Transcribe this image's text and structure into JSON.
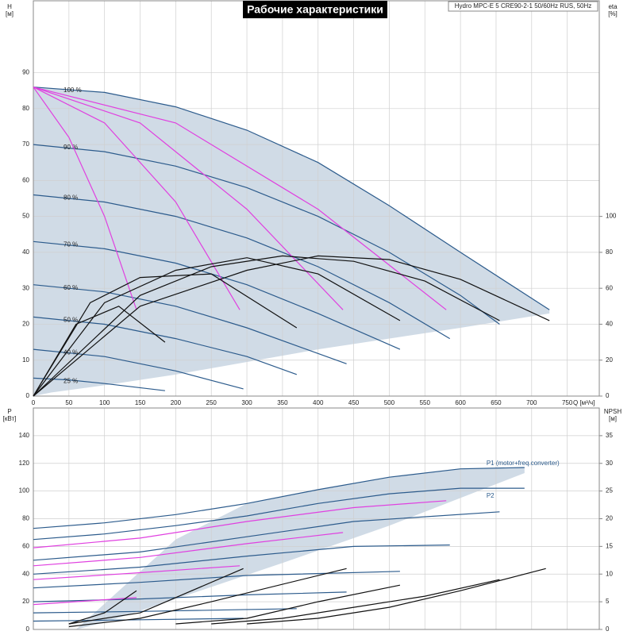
{
  "title": "Рабочие характеристики",
  "header": "Hydro MPC-E 5 CRE90-2-1 50/60Hz RUS, 50Hz",
  "chart_data": [
    {
      "type": "line",
      "ylabel": "H",
      "yunit": "[м]",
      "y2label": "eta",
      "y2unit": "[%]",
      "xlabel": "Q [м³/ч]",
      "xlim": [
        0,
        795
      ],
      "ylim": [
        0,
        110
      ],
      "y2lim": [
        0,
        220
      ],
      "xticks": [
        0,
        50,
        100,
        150,
        200,
        250,
        300,
        350,
        400,
        450,
        500,
        550,
        600,
        650,
        700,
        750
      ],
      "yticks": [
        0,
        10,
        20,
        30,
        40,
        50,
        60,
        70,
        80,
        90
      ],
      "y2ticks": [
        0,
        20,
        40,
        60,
        80,
        100
      ],
      "grid": true,
      "shaded_region": {
        "color": "#c8d5e2",
        "x": [
          0,
          100,
          200,
          300,
          400,
          500,
          600,
          725,
          725,
          600,
          400,
          200,
          100,
          25,
          0
        ],
        "y": [
          86,
          84.5,
          80.5,
          74,
          65,
          53,
          40,
          24,
          23,
          19,
          13,
          6,
          3,
          1,
          0
        ]
      },
      "series": [
        {
          "name": "100 %",
          "color": "#2c5b8c",
          "x": [
            0,
            100,
            200,
            300,
            400,
            500,
            600,
            725
          ],
          "values": [
            86,
            84.5,
            80.5,
            74,
            65,
            53,
            40,
            24
          ]
        },
        {
          "name": "90 %",
          "color": "#2c5b8c",
          "x": [
            0,
            100,
            200,
            300,
            400,
            500,
            600,
            655
          ],
          "values": [
            70,
            68,
            64,
            58,
            50,
            40,
            28,
            20
          ]
        },
        {
          "name": "80 %",
          "color": "#2c5b8c",
          "x": [
            0,
            100,
            200,
            300,
            400,
            500,
            585
          ],
          "values": [
            56,
            54,
            50,
            44,
            36,
            26,
            16
          ]
        },
        {
          "name": "70 %",
          "color": "#2c5b8c",
          "x": [
            0,
            100,
            200,
            300,
            400,
            515
          ],
          "values": [
            43,
            41,
            37,
            31,
            23,
            13
          ]
        },
        {
          "name": "60 %",
          "color": "#2c5b8c",
          "x": [
            0,
            100,
            200,
            300,
            440
          ],
          "values": [
            31,
            29,
            25,
            19,
            9
          ]
        },
        {
          "name": "50 %",
          "color": "#2c5b8c",
          "x": [
            0,
            100,
            200,
            300,
            370
          ],
          "values": [
            22,
            20,
            16,
            11,
            6
          ]
        },
        {
          "name": "40 %",
          "color": "#2c5b8c",
          "x": [
            0,
            100,
            200,
            295
          ],
          "values": [
            13,
            11,
            7,
            2
          ]
        },
        {
          "name": "25 %",
          "color": "#2c5b8c",
          "x": [
            0,
            50,
            100,
            185
          ],
          "values": [
            5,
            4.5,
            3.5,
            1.5
          ]
        },
        {
          "color": "#e040e0",
          "x": [
            0,
            50,
            100,
            145
          ],
          "values": [
            86,
            72,
            50,
            24
          ]
        },
        {
          "color": "#e040e0",
          "x": [
            0,
            100,
            200,
            290
          ],
          "values": [
            86,
            76,
            54,
            24
          ]
        },
        {
          "color": "#e040e0",
          "x": [
            0,
            150,
            300,
            435
          ],
          "values": [
            86,
            76,
            52,
            24
          ]
        },
        {
          "color": "#e040e0",
          "x": [
            0,
            200,
            400,
            580
          ],
          "values": [
            86,
            76,
            52,
            24
          ]
        },
        {
          "color": "#111111",
          "axis": "y2",
          "x": [
            0,
            150,
            300,
            400,
            500,
            600,
            725
          ],
          "values": [
            0,
            50,
            70,
            78,
            76,
            65,
            42
          ]
        },
        {
          "color": "#111111",
          "axis": "y2",
          "x": [
            0,
            150,
            250,
            350,
            450,
            550,
            655
          ],
          "values": [
            0,
            56,
            72,
            78,
            75,
            64,
            42
          ]
        },
        {
          "color": "#111111",
          "axis": "y2",
          "x": [
            0,
            100,
            200,
            300,
            400,
            515
          ],
          "values": [
            0,
            52,
            70,
            77,
            68,
            42
          ]
        },
        {
          "color": "#111111",
          "axis": "y2",
          "x": [
            0,
            80,
            150,
            250,
            370
          ],
          "values": [
            0,
            52,
            66,
            68,
            38
          ]
        },
        {
          "color": "#111111",
          "axis": "y2",
          "x": [
            0,
            60,
            120,
            185
          ],
          "values": [
            0,
            40,
            50,
            30
          ]
        }
      ]
    },
    {
      "type": "line",
      "ylabel": "P",
      "yunit": "[кВт]",
      "y2label": "NPSH",
      "y2unit": "[м]",
      "xlim": [
        0,
        795
      ],
      "ylim": [
        0,
        160
      ],
      "y2lim": [
        0,
        40
      ],
      "yticks": [
        0,
        20,
        40,
        60,
        80,
        100,
        120,
        140
      ],
      "y2ticks": [
        0,
        5,
        10,
        15,
        20,
        25,
        30,
        35
      ],
      "grid": true,
      "shaded_region": {
        "color": "#c8d5e2",
        "x": [
          200,
          300,
          400,
          500,
          600,
          690,
          690,
          500,
          350,
          200,
          100,
          60
        ],
        "y": [
          65,
          91,
          101,
          110,
          116,
          117,
          113,
          75,
          48,
          22,
          5,
          0
        ]
      },
      "series": [
        {
          "name": "P1 (motor+freq.converter)",
          "color": "#2c5b8c",
          "x": [
            0,
            100,
            200,
            300,
            400,
            500,
            600,
            690
          ],
          "values": [
            73,
            77,
            83,
            91,
            101,
            110,
            116,
            117
          ]
        },
        {
          "name": "P2",
          "color": "#2c5b8c",
          "x": [
            0,
            100,
            200,
            300,
            400,
            500,
            600,
            690
          ],
          "values": [
            65,
            69,
            75,
            82,
            91,
            98,
            102,
            102
          ]
        },
        {
          "color": "#2c5b8c",
          "x": [
            0,
            150,
            300,
            450,
            655
          ],
          "values": [
            50,
            56,
            67,
            78,
            85
          ]
        },
        {
          "color": "#2c5b8c",
          "x": [
            0,
            150,
            300,
            450,
            585
          ],
          "values": [
            40,
            45,
            53,
            60,
            61
          ]
        },
        {
          "color": "#2c5b8c",
          "x": [
            0,
            150,
            300,
            515
          ],
          "values": [
            30,
            34,
            39,
            42
          ]
        },
        {
          "color": "#2c5b8c",
          "x": [
            0,
            150,
            300,
            440
          ],
          "values": [
            20,
            22,
            25,
            27
          ]
        },
        {
          "color": "#2c5b8c",
          "x": [
            0,
            150,
            370
          ],
          "values": [
            12,
            13,
            15
          ]
        },
        {
          "color": "#2c5b8c",
          "x": [
            0,
            150,
            295
          ],
          "values": [
            6,
            7,
            8
          ]
        },
        {
          "color": "#e040e0",
          "x": [
            0,
            150,
            300,
            450,
            580
          ],
          "values": [
            59,
            66,
            78,
            88,
            93
          ]
        },
        {
          "color": "#e040e0",
          "x": [
            0,
            150,
            300,
            435
          ],
          "values": [
            46,
            52,
            62,
            70
          ]
        },
        {
          "color": "#e040e0",
          "x": [
            0,
            150,
            290
          ],
          "values": [
            36,
            41,
            46
          ]
        },
        {
          "color": "#e040e0",
          "x": [
            0,
            145
          ],
          "values": [
            18,
            23
          ]
        },
        {
          "color": "#111111",
          "axis": "y2",
          "x": [
            300,
            400,
            500,
            600,
            720
          ],
          "values": [
            1,
            2,
            4,
            7,
            11
          ]
        },
        {
          "color": "#111111",
          "axis": "y2",
          "x": [
            250,
            350,
            450,
            550,
            655
          ],
          "values": [
            1,
            2,
            4,
            6,
            9
          ]
        },
        {
          "color": "#111111",
          "axis": "y2",
          "x": [
            200,
            300,
            400,
            515
          ],
          "values": [
            1,
            2,
            5,
            8
          ]
        },
        {
          "color": "#111111",
          "axis": "y2",
          "x": [
            50,
            150,
            250,
            440
          ],
          "values": [
            0.5,
            2,
            5,
            11
          ]
        },
        {
          "color": "#111111",
          "axis": "y2",
          "x": [
            50,
            150,
            295
          ],
          "values": [
            1,
            3,
            11
          ]
        },
        {
          "color": "#111111",
          "axis": "y2",
          "x": [
            50,
            100,
            145
          ],
          "values": [
            1,
            3,
            7
          ]
        }
      ]
    }
  ]
}
